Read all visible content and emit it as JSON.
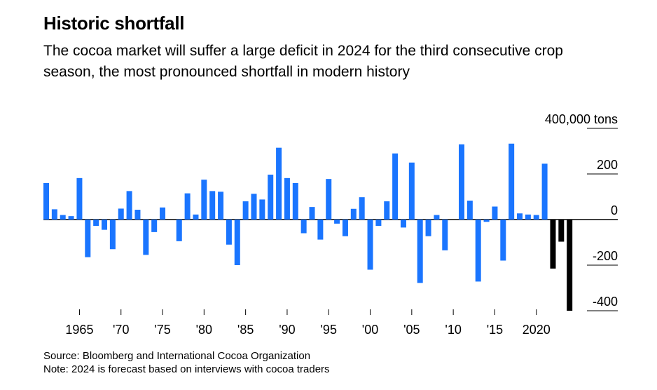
{
  "title": "Historic shortfall",
  "subtitle": "The cocoa market will suffer a large deficit in 2024 for the third consecutive crop season, the most pronounced shortfall in modern history",
  "source": "Source: Bloomberg and International Cocoa Organization",
  "note": "Note: 2024 is forecast based on interviews with cocoa traders",
  "colors": {
    "actual": "#1a75ff",
    "forecast": "#000000",
    "grid": "#000000"
  },
  "chart_data": {
    "type": "bar",
    "unit": "400,000 tons",
    "x": [
      1961,
      1962,
      1963,
      1964,
      1965,
      1966,
      1967,
      1968,
      1969,
      1970,
      1971,
      1972,
      1973,
      1974,
      1975,
      1976,
      1977,
      1978,
      1979,
      1980,
      1981,
      1982,
      1983,
      1984,
      1985,
      1986,
      1987,
      1988,
      1989,
      1990,
      1991,
      1992,
      1993,
      1994,
      1995,
      1996,
      1997,
      1998,
      1999,
      2000,
      2001,
      2002,
      2003,
      2004,
      2005,
      2006,
      2007,
      2008,
      2009,
      2010,
      2011,
      2012,
      2013,
      2014,
      2015,
      2016,
      2017,
      2018,
      2019,
      2020,
      2021,
      2022,
      2023,
      2024
    ],
    "values": [
      160,
      45,
      20,
      15,
      182,
      -165,
      -28,
      -45,
      -130,
      48,
      125,
      43,
      -155,
      -55,
      53,
      0,
      -95,
      115,
      22,
      175,
      125,
      122,
      -110,
      -200,
      80,
      113,
      88,
      197,
      315,
      182,
      160,
      -60,
      55,
      -88,
      178,
      -18,
      -73,
      47,
      98,
      -220,
      -28,
      80,
      290,
      -35,
      250,
      -278,
      -73,
      20,
      -135,
      0,
      330,
      83,
      -272,
      -10,
      57,
      -180,
      333,
      27,
      22,
      20,
      245,
      -215,
      -97,
      -400
    ],
    "forecast_from": 2022,
    "xticks": [
      1965,
      1970,
      1975,
      1980,
      1985,
      1990,
      1995,
      2000,
      2005,
      2010,
      2015,
      2020
    ],
    "xtick_labels": [
      "1965",
      "'70",
      "'75",
      "'80",
      "'85",
      "'90",
      "'95",
      "'00",
      "'05",
      "'10",
      "'15",
      "2020"
    ],
    "yticks": [
      400,
      200,
      0,
      -200,
      -400
    ],
    "ytick_labels": [
      "400,000 tons",
      "200",
      "0",
      "-200",
      "-400"
    ],
    "ylim": [
      -400,
      400
    ],
    "grid": true
  }
}
